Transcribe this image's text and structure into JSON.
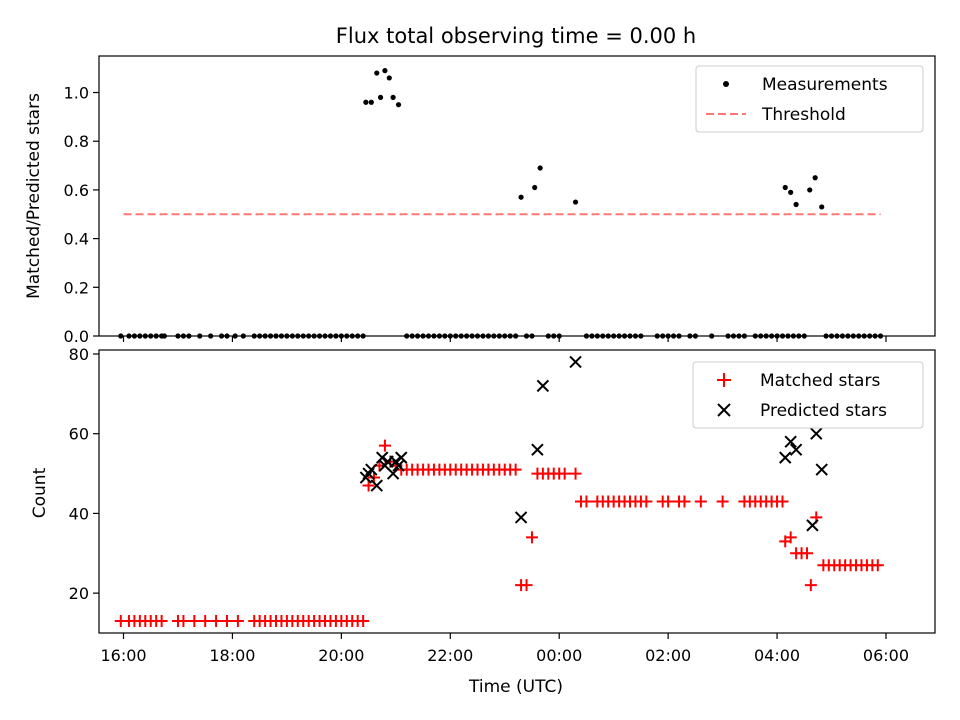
{
  "figure_title": "Flux total observing time = 0.00 h",
  "chart_data": [
    {
      "type": "scatter",
      "panel": "top",
      "ylabel": "Matched/Predicted stars",
      "xlabel": "",
      "x_unit": "hours since 16:00 UTC",
      "xlim": [
        -0.45,
        14.9
      ],
      "ylim": [
        0.0,
        1.15
      ],
      "yticks": [
        0.0,
        0.2,
        0.4,
        0.6,
        0.8,
        1.0
      ],
      "ytick_labels": [
        "0.0",
        "0.2",
        "0.4",
        "0.6",
        "0.8",
        "1.0"
      ],
      "xticks": [
        0,
        2,
        4,
        6,
        8,
        10,
        12,
        14
      ],
      "legend_position": "top-right",
      "series": [
        {
          "name": "Measurements",
          "marker": "dot",
          "color": "#000000",
          "points": [
            [
              4.45,
              0.96
            ],
            [
              4.55,
              0.96
            ],
            [
              4.65,
              1.08
            ],
            [
              4.72,
              0.98
            ],
            [
              4.8,
              1.09
            ],
            [
              4.88,
              1.06
            ],
            [
              4.95,
              0.98
            ],
            [
              5.05,
              0.95
            ],
            [
              7.3,
              0.57
            ],
            [
              7.55,
              0.61
            ],
            [
              7.65,
              0.69
            ],
            [
              8.3,
              0.55
            ],
            [
              12.15,
              0.61
            ],
            [
              12.25,
              0.59
            ],
            [
              12.35,
              0.54
            ],
            [
              12.6,
              0.6
            ],
            [
              12.7,
              0.65
            ],
            [
              12.82,
              0.53
            ],
            [
              -0.05,
              0
            ],
            [
              0.1,
              0
            ],
            [
              0.2,
              0
            ],
            [
              0.3,
              0
            ],
            [
              0.4,
              0
            ],
            [
              0.5,
              0
            ],
            [
              0.6,
              0
            ],
            [
              0.7,
              0
            ],
            [
              0.75,
              0
            ],
            [
              1.0,
              0
            ],
            [
              1.1,
              0
            ],
            [
              1.2,
              0
            ],
            [
              1.4,
              0
            ],
            [
              1.6,
              0
            ],
            [
              1.8,
              0
            ],
            [
              1.9,
              0
            ],
            [
              2.05,
              0
            ],
            [
              2.2,
              0
            ],
            [
              2.4,
              0
            ],
            [
              2.5,
              0
            ],
            [
              2.6,
              0
            ],
            [
              2.7,
              0
            ],
            [
              2.8,
              0
            ],
            [
              2.9,
              0
            ],
            [
              3.0,
              0
            ],
            [
              3.1,
              0
            ],
            [
              3.2,
              0
            ],
            [
              3.3,
              0
            ],
            [
              3.4,
              0
            ],
            [
              3.5,
              0
            ],
            [
              3.6,
              0
            ],
            [
              3.7,
              0
            ],
            [
              3.8,
              0
            ],
            [
              3.9,
              0
            ],
            [
              4.0,
              0
            ],
            [
              4.1,
              0
            ],
            [
              4.2,
              0
            ],
            [
              4.3,
              0
            ],
            [
              4.4,
              0
            ],
            [
              5.2,
              0
            ],
            [
              5.3,
              0
            ],
            [
              5.4,
              0
            ],
            [
              5.5,
              0
            ],
            [
              5.6,
              0
            ],
            [
              5.7,
              0
            ],
            [
              5.8,
              0
            ],
            [
              5.9,
              0
            ],
            [
              6.0,
              0
            ],
            [
              6.1,
              0
            ],
            [
              6.2,
              0
            ],
            [
              6.3,
              0
            ],
            [
              6.4,
              0
            ],
            [
              6.5,
              0
            ],
            [
              6.6,
              0
            ],
            [
              6.7,
              0
            ],
            [
              6.8,
              0
            ],
            [
              6.9,
              0
            ],
            [
              7.0,
              0
            ],
            [
              7.1,
              0
            ],
            [
              7.2,
              0
            ],
            [
              7.4,
              0
            ],
            [
              7.5,
              0
            ],
            [
              7.8,
              0
            ],
            [
              7.9,
              0
            ],
            [
              8.0,
              0
            ],
            [
              8.5,
              0
            ],
            [
              8.6,
              0
            ],
            [
              8.7,
              0
            ],
            [
              8.8,
              0
            ],
            [
              8.9,
              0
            ],
            [
              9.0,
              0
            ],
            [
              9.1,
              0
            ],
            [
              9.2,
              0
            ],
            [
              9.3,
              0
            ],
            [
              9.4,
              0
            ],
            [
              9.5,
              0
            ],
            [
              9.8,
              0
            ],
            [
              9.9,
              0
            ],
            [
              10.0,
              0
            ],
            [
              10.1,
              0
            ],
            [
              10.2,
              0
            ],
            [
              10.4,
              0
            ],
            [
              10.5,
              0
            ],
            [
              10.8,
              0
            ],
            [
              11.1,
              0
            ],
            [
              11.2,
              0
            ],
            [
              11.3,
              0
            ],
            [
              11.4,
              0
            ],
            [
              11.6,
              0
            ],
            [
              11.7,
              0
            ],
            [
              11.8,
              0
            ],
            [
              11.9,
              0
            ],
            [
              12.0,
              0
            ],
            [
              12.1,
              0
            ],
            [
              12.2,
              0
            ],
            [
              12.3,
              0
            ],
            [
              12.4,
              0
            ],
            [
              12.5,
              0
            ],
            [
              12.9,
              0
            ],
            [
              13.0,
              0
            ],
            [
              13.1,
              0
            ],
            [
              13.2,
              0
            ],
            [
              13.3,
              0
            ],
            [
              13.4,
              0
            ],
            [
              13.5,
              0
            ],
            [
              13.6,
              0
            ],
            [
              13.7,
              0
            ],
            [
              13.8,
              0
            ],
            [
              13.9,
              0
            ]
          ]
        },
        {
          "name": "Threshold",
          "marker": "dashed-line",
          "color": "#ff7777",
          "points": [
            [
              0.0,
              0.5
            ],
            [
              13.9,
              0.5
            ]
          ]
        }
      ]
    },
    {
      "type": "scatter",
      "panel": "bottom",
      "xlabel": "Time (UTC)",
      "ylabel": "Count",
      "x_unit": "hours since 16:00 UTC",
      "xlim": [
        -0.45,
        14.9
      ],
      "ylim": [
        10,
        81
      ],
      "yticks": [
        20,
        40,
        60,
        80
      ],
      "ytick_labels": [
        "20",
        "40",
        "60",
        "80"
      ],
      "xticks": [
        0,
        2,
        4,
        6,
        8,
        10,
        12,
        14
      ],
      "xtick_labels": [
        "16:00",
        "18:00",
        "20:00",
        "22:00",
        "00:00",
        "02:00",
        "04:00",
        "06:00"
      ],
      "legend_position": "top-right",
      "series": [
        {
          "name": "Matched stars",
          "marker": "plus",
          "color": "#ff0000",
          "points": [
            [
              -0.05,
              13
            ],
            [
              0.1,
              13
            ],
            [
              0.2,
              13
            ],
            [
              0.3,
              13
            ],
            [
              0.4,
              13
            ],
            [
              0.5,
              13
            ],
            [
              0.6,
              13
            ],
            [
              0.7,
              13
            ],
            [
              1.0,
              13
            ],
            [
              1.1,
              13
            ],
            [
              1.3,
              13
            ],
            [
              1.5,
              13
            ],
            [
              1.7,
              13
            ],
            [
              1.9,
              13
            ],
            [
              2.1,
              13
            ],
            [
              2.4,
              13
            ],
            [
              2.5,
              13
            ],
            [
              2.6,
              13
            ],
            [
              2.7,
              13
            ],
            [
              2.8,
              13
            ],
            [
              2.9,
              13
            ],
            [
              3.0,
              13
            ],
            [
              3.1,
              13
            ],
            [
              3.2,
              13
            ],
            [
              3.3,
              13
            ],
            [
              3.4,
              13
            ],
            [
              3.5,
              13
            ],
            [
              3.6,
              13
            ],
            [
              3.7,
              13
            ],
            [
              3.8,
              13
            ],
            [
              3.9,
              13
            ],
            [
              4.0,
              13
            ],
            [
              4.1,
              13
            ],
            [
              4.2,
              13
            ],
            [
              4.3,
              13
            ],
            [
              4.4,
              13
            ],
            [
              4.5,
              47
            ],
            [
              4.6,
              49
            ],
            [
              4.7,
              52
            ],
            [
              4.8,
              57
            ],
            [
              4.9,
              53
            ],
            [
              5.0,
              52
            ],
            [
              5.1,
              51
            ],
            [
              5.2,
              51
            ],
            [
              5.3,
              51
            ],
            [
              5.4,
              51
            ],
            [
              5.5,
              51
            ],
            [
              5.6,
              51
            ],
            [
              5.7,
              51
            ],
            [
              5.8,
              51
            ],
            [
              5.9,
              51
            ],
            [
              6.0,
              51
            ],
            [
              6.1,
              51
            ],
            [
              6.2,
              51
            ],
            [
              6.3,
              51
            ],
            [
              6.4,
              51
            ],
            [
              6.5,
              51
            ],
            [
              6.6,
              51
            ],
            [
              6.7,
              51
            ],
            [
              6.8,
              51
            ],
            [
              6.9,
              51
            ],
            [
              7.0,
              51
            ],
            [
              7.1,
              51
            ],
            [
              7.2,
              51
            ],
            [
              7.3,
              22
            ],
            [
              7.4,
              22
            ],
            [
              7.5,
              34
            ],
            [
              7.6,
              50
            ],
            [
              7.7,
              50
            ],
            [
              7.8,
              50
            ],
            [
              7.9,
              50
            ],
            [
              8.0,
              50
            ],
            [
              8.1,
              50
            ],
            [
              8.3,
              50
            ],
            [
              8.4,
              43
            ],
            [
              8.5,
              43
            ],
            [
              8.7,
              43
            ],
            [
              8.8,
              43
            ],
            [
              8.9,
              43
            ],
            [
              9.0,
              43
            ],
            [
              9.1,
              43
            ],
            [
              9.2,
              43
            ],
            [
              9.3,
              43
            ],
            [
              9.4,
              43
            ],
            [
              9.5,
              43
            ],
            [
              9.6,
              43
            ],
            [
              9.9,
              43
            ],
            [
              10.0,
              43
            ],
            [
              10.2,
              43
            ],
            [
              10.3,
              43
            ],
            [
              10.6,
              43
            ],
            [
              11.0,
              43
            ],
            [
              11.4,
              43
            ],
            [
              11.5,
              43
            ],
            [
              11.6,
              43
            ],
            [
              11.7,
              43
            ],
            [
              11.8,
              43
            ],
            [
              11.9,
              43
            ],
            [
              12.0,
              43
            ],
            [
              12.1,
              43
            ],
            [
              12.15,
              33
            ],
            [
              12.25,
              34
            ],
            [
              12.35,
              30
            ],
            [
              12.45,
              30
            ],
            [
              12.55,
              30
            ],
            [
              12.62,
              22
            ],
            [
              12.72,
              39
            ],
            [
              12.85,
              27
            ],
            [
              12.95,
              27
            ],
            [
              13.05,
              27
            ],
            [
              13.15,
              27
            ],
            [
              13.25,
              27
            ],
            [
              13.35,
              27
            ],
            [
              13.45,
              27
            ],
            [
              13.55,
              27
            ],
            [
              13.65,
              27
            ],
            [
              13.75,
              27
            ],
            [
              13.85,
              27
            ]
          ]
        },
        {
          "name": "Predicted stars",
          "marker": "x",
          "color": "#000000",
          "points": [
            [
              4.45,
              49
            ],
            [
              4.5,
              50
            ],
            [
              4.55,
              51
            ],
            [
              4.65,
              47
            ],
            [
              4.75,
              54
            ],
            [
              4.8,
              52
            ],
            [
              4.85,
              53
            ],
            [
              4.95,
              50
            ],
            [
              5.0,
              53
            ],
            [
              5.05,
              52
            ],
            [
              5.1,
              54
            ],
            [
              7.3,
              39
            ],
            [
              7.6,
              56
            ],
            [
              7.7,
              72
            ],
            [
              8.3,
              78
            ],
            [
              12.15,
              54
            ],
            [
              12.25,
              58
            ],
            [
              12.35,
              56
            ],
            [
              12.65,
              37
            ],
            [
              12.72,
              60
            ],
            [
              12.82,
              51
            ]
          ]
        }
      ]
    }
  ]
}
